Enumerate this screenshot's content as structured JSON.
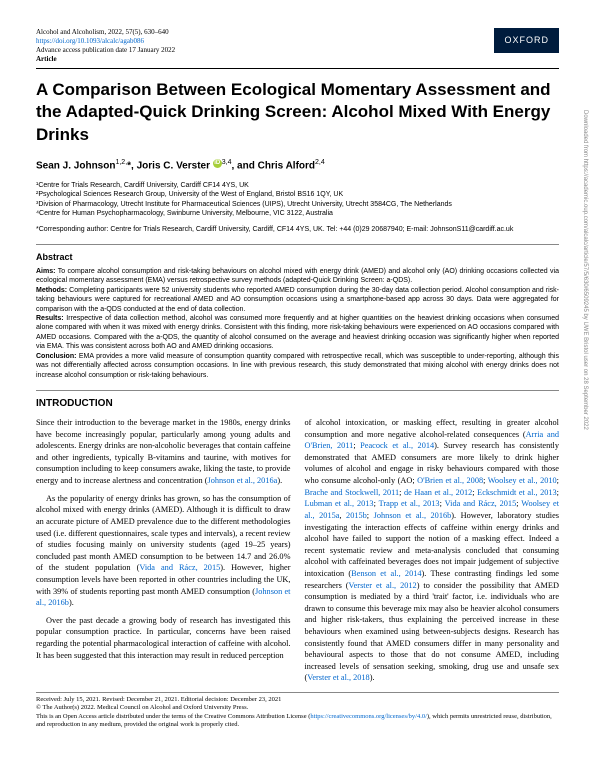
{
  "header": {
    "journal_line": "Alcohol and Alcoholism, 2022, 57(5), 630–640",
    "doi": "https://doi.org/10.1093/alcalc/agab086",
    "advance": "Advance access publication date 17 January 2022",
    "type": "Article",
    "publisher_badge": "OXFORD"
  },
  "title": "A Comparison Between Ecological Momentary Assessment and the Adapted-Quick Drinking Screen: Alcohol Mixed With Energy Drinks",
  "authors_html": "Sean J. Johnson<sup>1,2,</sup>*, Joris C. Verster <span class='orcid'>iD</span><sup>3,4</sup>, and Chris Alford<sup>2,4</sup>",
  "affiliations": [
    "¹Centre for Trials Research, Cardiff University, Cardiff CF14 4YS, UK",
    "²Psychological Sciences Research Group, University of the West of England, Bristol BS16 1QY, UK",
    "³Division of Pharmacology, Utrecht Institute for Pharmaceutical Sciences (UIPS), Utrecht University, Utrecht 3584CG, The Netherlands",
    "⁴Centre for Human Psychopharmacology, Swinburne University, Melbourne, VIC 3122, Australia"
  ],
  "corresponding": "*Corresponding author: Centre for Trials Research, Cardiff University, Cardiff, CF14 4YS, UK. Tel: +44 (0)29 20687940; E-mail: JohnsonS11@cardiff.ac.uk",
  "abstract": {
    "heading": "Abstract",
    "aims_label": "Aims:",
    "aims": " To compare alcohol consumption and risk-taking behaviours on alcohol mixed with energy drink (AMED) and alcohol only (AO) drinking occasions collected via ecological momentary assessment (EMA) versus retrospective survey methods (adapted-Quick Drinking Screen: a-QDS).",
    "methods_label": "Methods:",
    "methods": " Completing participants were 52 university students who reported AMED consumption during the 30-day data collection period. Alcohol consumption and risk-taking behaviours were captured for recreational AMED and AO consumption occasions using a smartphone-based app across 30 days. Data were aggregated for comparison with the a-QDS conducted at the end of data collection.",
    "results_label": "Results:",
    "results": " Irrespective of data collection method, alcohol was consumed more frequently and at higher quantities on the heaviest drinking occasions when consumed alone compared with when it was mixed with energy drinks. Consistent with this finding, more risk-taking behaviours were experienced on AO occasions compared with AMED occasions. Compared with the a-QDS, the quantity of alcohol consumed on the average and heaviest drinking occasion was significantly higher when reported via EMA. This was consistent across both AO and AMED drinking occasions.",
    "conclusion_label": "Conclusion:",
    "conclusion": " EMA provides a more valid measure of consumption quantity compared with retrospective recall, which was susceptible to under-reporting, although this was not differentially affected across consumption occasions. In line with previous research, this study demonstrated that mixing alcohol with energy drinks does not increase alcohol consumption or risk-taking behaviours."
  },
  "intro": {
    "heading": "INTRODUCTION",
    "p1": "Since their introduction to the beverage market in the 1980s, energy drinks have become increasingly popular, particularly among young adults and adolescents. Energy drinks are non-alcoholic beverages that contain caffeine and other ingredients, typically B-vitamins and taurine, with motives for consumption including to keep consumers awake, liking the taste, to provide energy and to increase alertness and concentration (",
    "p1_cite": "Johnson et al., 2016a",
    "p1_end": ").",
    "p2_a": "As the popularity of energy drinks has grown, so has the consumption of alcohol mixed with energy drinks (AMED). Although it is difficult to draw an accurate picture of AMED prevalence due to the different methodologies used (i.e. different questionnaires, scale types and intervals), a recent review of studies focusing mainly on university students (aged 19–25 years) concluded past month AMED consumption to be between 14.7 and 26.0% of the student population (",
    "p2_cite1": "Vida and Rácz, 2015",
    "p2_b": "). However, higher consumption levels have been reported in other countries including the UK, with 39% of students reporting past month AMED consumption (",
    "p2_cite2": "Johnson et al., 2016b",
    "p2_c": ").",
    "p3": "Over the past decade a growing body of research has investigated this popular consumption practice. In particular, concerns have been raised regarding the potential pharmacological interaction of caffeine with alcohol. It has been suggested that this interaction may result in reduced perception",
    "p4_a": "of alcohol intoxication, or masking effect, resulting in greater alcohol consumption and more negative alcohol-related consequences (",
    "p4_cite1": "Arria and O'Brien, 2011",
    "p4_semi1": "; ",
    "p4_cite2": "Peacock et al., 2014",
    "p4_b": "). Survey research has consistently demonstrated that AMED consumers are more likely to drink higher volumes of alcohol and engage in risky behaviours compared with those who consume alcohol-only (AO; ",
    "p4_cite3": "O'Brien et al., 2008",
    "p4_semi2": "; ",
    "p4_cite4": "Woolsey et al., 2010",
    "p4_semi3": "; ",
    "p4_cite5": "Brache and Stockwell, 2011",
    "p4_semi4": "; ",
    "p4_cite6": "de Haan et al., 2012",
    "p4_semi5": "; ",
    "p4_cite7": "Eckschmidt et al., 2013",
    "p4_semi6": "; ",
    "p4_cite8": "Lubman et al., 2013",
    "p4_semi7": "; ",
    "p4_cite9": "Trapp et al., 2013",
    "p4_semi8": "; ",
    "p4_cite10": "Vida and Rácz, 2015",
    "p4_semi9": "; ",
    "p4_cite11": "Woolsey et al., 2015a",
    "p4_comma": ", ",
    "p4_cite12": "2015b",
    "p4_semi10": "; ",
    "p4_cite13": "Johnson et al., 2016b",
    "p4_c": "). However, laboratory studies investigating the interaction effects of caffeine within energy drinks and alcohol have failed to support the notion of a masking effect. Indeed a recent systematic review and meta-analysis concluded that consuming alcohol with caffeinated beverages does not impair judgement of subjective intoxication (",
    "p4_cite14": "Benson et al., 2014",
    "p4_d": "). These contrasting findings led some researchers (",
    "p4_cite15": "Verster et al., 2012",
    "p4_e": ") to consider the possibility that AMED consumption is mediated by a third 'trait' factor, i.e. individuals who are drawn to consume this beverage mix may also be heavier alcohol consumers and higher risk-takers, thus explaining the perceived increase in these behaviours when examined using between-subjects designs. Research has consistently found that AMED consumers differ in many personality and behavioural aspects to those that do not consume AMED, including increased levels of sensation seeking, smoking, drug use and unsafe sex (",
    "p4_cite16": "Verster et al., 2018",
    "p4_f": ")."
  },
  "footer": {
    "dates": "Received: July 15, 2021. Revised: December 21, 2021. Editorial decision: December 23, 2021",
    "copyright": "© The Author(s) 2022. Medical Council on Alcohol and Oxford University Press.",
    "license_a": "This is an Open Access article distributed under the terms of the Creative Commons Attribution License (",
    "license_url": "https://creativecommons.org/licenses/by/4.0/",
    "license_b": "), which permits unrestricted reuse, distribution, and reproduction in any medium, provided the original work is properly cited."
  },
  "side": "Downloaded from https://academic.oup.com/alcalc/article/57/5/630/6509245 by UWE Bristol user on 28 September 2022"
}
